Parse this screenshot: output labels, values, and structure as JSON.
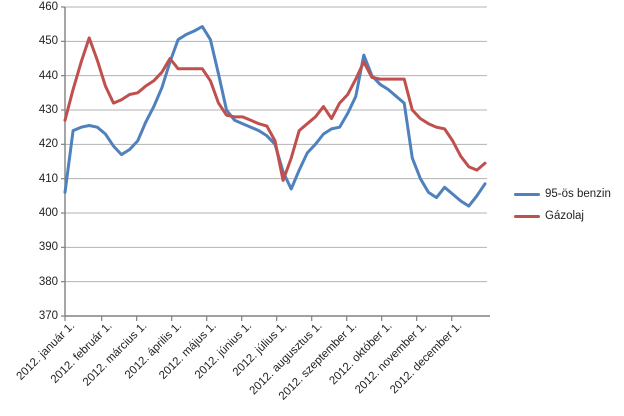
{
  "chart_data": {
    "type": "line",
    "title": "",
    "grid": true,
    "legend_position": "right",
    "x_axis": {
      "tick_labels": [
        "2012. január 1.",
        "2012. február 1.",
        "2012. március 1.",
        "2012. április 1.",
        "2012. május 1.",
        "2012. június 1.",
        "2012. július 1.",
        "2012. augusztus 1.",
        "2012. szeptember 1.",
        "2012. október 1.",
        "2012. november 1.",
        "2012. december 1."
      ],
      "interval": "weekly"
    },
    "y_axis": {
      "ticks": [
        370,
        380,
        390,
        400,
        410,
        420,
        430,
        440,
        450,
        460
      ],
      "range": [
        370,
        460
      ]
    },
    "series": [
      {
        "name": "95-ös benzin",
        "color": "#4F81BD",
        "values": [
          406,
          424,
          425,
          425.5,
          425,
          423,
          419.5,
          417,
          418.5,
          421,
          426.5,
          431,
          436.5,
          444,
          450.5,
          452,
          453,
          454.3,
          450.5,
          440.5,
          430,
          427,
          426,
          425,
          424,
          422.5,
          420,
          412,
          407,
          412.5,
          417.5,
          420,
          423,
          424.5,
          425,
          429,
          434,
          446,
          440,
          437.5,
          436,
          434,
          432,
          416,
          410,
          406,
          404.5,
          407.5,
          405.5,
          403.5,
          402,
          405,
          408.5
        ]
      },
      {
        "name": "Gázolaj",
        "color": "#C0504D",
        "values": [
          427,
          436,
          444,
          451,
          444.5,
          437,
          432,
          433,
          434.5,
          435,
          437,
          438.5,
          441,
          445,
          442,
          442,
          442,
          442,
          438.5,
          432,
          428.5,
          428,
          428,
          427,
          426,
          425.3,
          421,
          409.5,
          416,
          424,
          426,
          428,
          431,
          427.5,
          432,
          434.5,
          439,
          444,
          439.5,
          439,
          439,
          439,
          439,
          430,
          427.5,
          426,
          425,
          424.5,
          421,
          416.5,
          413.5,
          412.5,
          414.5
        ]
      }
    ],
    "colors": {
      "gridline": "#B3B3B3",
      "axis": "#808080",
      "text": "#1F1F1F",
      "background": "#FFFFFF"
    }
  }
}
